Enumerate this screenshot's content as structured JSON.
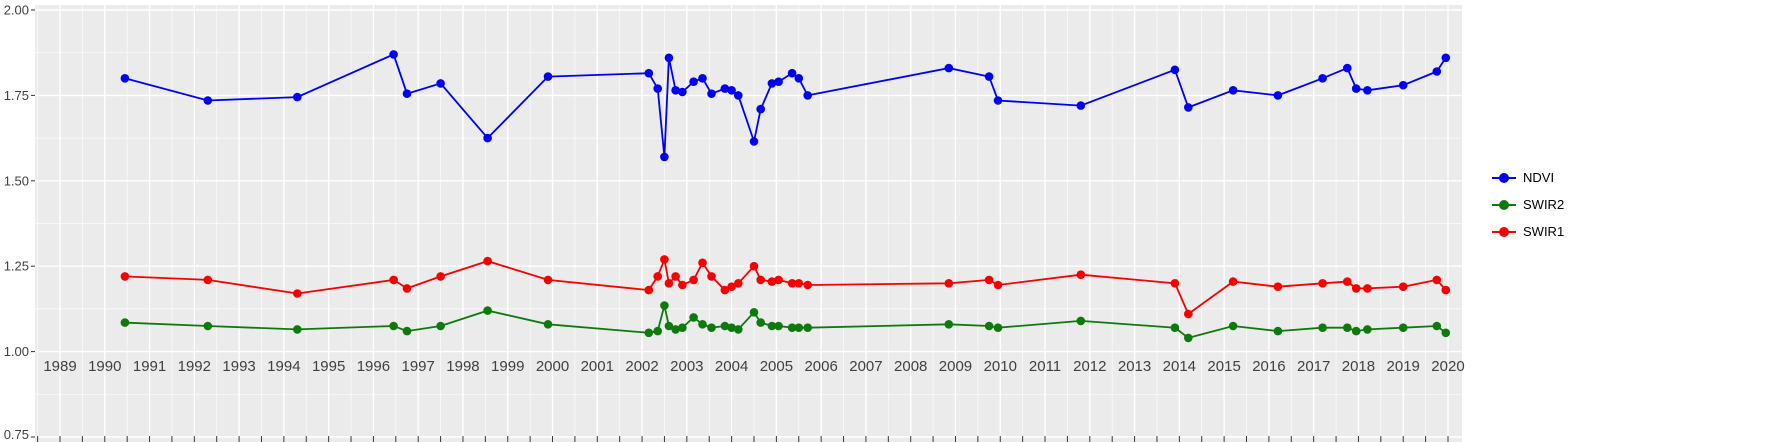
{
  "chart_data": {
    "type": "line",
    "title": "",
    "xlabel": "",
    "ylabel": "",
    "grid": true,
    "legend_position": "right",
    "panel_background": "#EBEBEB",
    "grid_color": "#FFFFFF",
    "axis_text_color": "#404040",
    "tick_color": "#333333",
    "xlim": [
      1988.44,
      2020.32
    ],
    "ylim": [
      0.75,
      2.0
    ],
    "x_ticks": [
      1989,
      1990,
      1991,
      1992,
      1993,
      1994,
      1995,
      1996,
      1997,
      1998,
      1999,
      2000,
      2001,
      2002,
      2003,
      2004,
      2005,
      2006,
      2007,
      2008,
      2009,
      2010,
      2011,
      2012,
      2013,
      2014,
      2015,
      2016,
      2017,
      2018,
      2019,
      2020
    ],
    "y_ticks": [
      0.75,
      1.0,
      1.25,
      1.5,
      1.75,
      2.0
    ],
    "y_tick_labels": [
      "0.75",
      "1.00",
      "1.25",
      "1.50",
      "1.75",
      "2.00"
    ],
    "y_minor_ticks": [
      0.875,
      1.125,
      1.375,
      1.625,
      1.875
    ],
    "x": [
      1990.45,
      1992.3,
      1994.3,
      1996.45,
      1996.75,
      1997.5,
      1998.55,
      1999.9,
      2002.15,
      2002.35,
      2002.5,
      2002.6,
      2002.75,
      2002.9,
      2003.15,
      2003.35,
      2003.55,
      2003.85,
      2004.0,
      2004.15,
      2004.5,
      2004.65,
      2004.9,
      2005.05,
      2005.35,
      2005.5,
      2005.7,
      2008.85,
      2009.75,
      2009.95,
      2011.8,
      2013.9,
      2014.2,
      2015.2,
      2016.2,
      2017.2,
      2017.75,
      2017.95,
      2018.2,
      2019.0,
      2019.75,
      2019.95
    ],
    "series": [
      {
        "name": "NDVI",
        "color": "#0000F5",
        "values": [
          1.8,
          1.735,
          1.745,
          1.87,
          1.755,
          1.785,
          1.625,
          1.805,
          1.815,
          1.77,
          1.57,
          1.86,
          1.765,
          1.76,
          1.79,
          1.8,
          1.755,
          1.77,
          1.765,
          1.75,
          1.615,
          1.71,
          1.785,
          1.79,
          1.815,
          1.8,
          1.75,
          1.83,
          1.805,
          1.735,
          1.72,
          1.825,
          1.715,
          1.765,
          1.75,
          1.8,
          1.83,
          1.77,
          1.765,
          1.78,
          1.82,
          1.86
        ]
      },
      {
        "name": "SWIR2",
        "color": "#0E7A0E",
        "values": [
          1.085,
          1.075,
          1.065,
          1.075,
          1.06,
          1.075,
          1.12,
          1.08,
          1.055,
          1.06,
          1.135,
          1.075,
          1.065,
          1.07,
          1.1,
          1.08,
          1.07,
          1.075,
          1.07,
          1.065,
          1.115,
          1.085,
          1.075,
          1.075,
          1.07,
          1.07,
          1.07,
          1.08,
          1.075,
          1.07,
          1.09,
          1.07,
          1.04,
          1.075,
          1.06,
          1.07,
          1.07,
          1.06,
          1.065,
          1.07,
          1.075,
          1.055
        ]
      },
      {
        "name": "SWIR1",
        "color": "#F80000",
        "values": [
          1.22,
          1.21,
          1.17,
          1.21,
          1.185,
          1.22,
          1.265,
          1.21,
          1.18,
          1.22,
          1.27,
          1.2,
          1.22,
          1.195,
          1.21,
          1.26,
          1.22,
          1.18,
          1.19,
          1.2,
          1.25,
          1.21,
          1.205,
          1.21,
          1.2,
          1.2,
          1.195,
          1.2,
          1.21,
          1.195,
          1.225,
          1.2,
          1.11,
          1.205,
          1.19,
          1.2,
          1.205,
          1.185,
          1.185,
          1.19,
          1.21,
          1.18
        ]
      }
    ]
  },
  "legend": {
    "entries": [
      {
        "label": "NDVI",
        "color": "#0000F5"
      },
      {
        "label": "SWIR2",
        "color": "#0E7A0E"
      },
      {
        "label": "SWIR1",
        "color": "#F80000"
      }
    ]
  }
}
